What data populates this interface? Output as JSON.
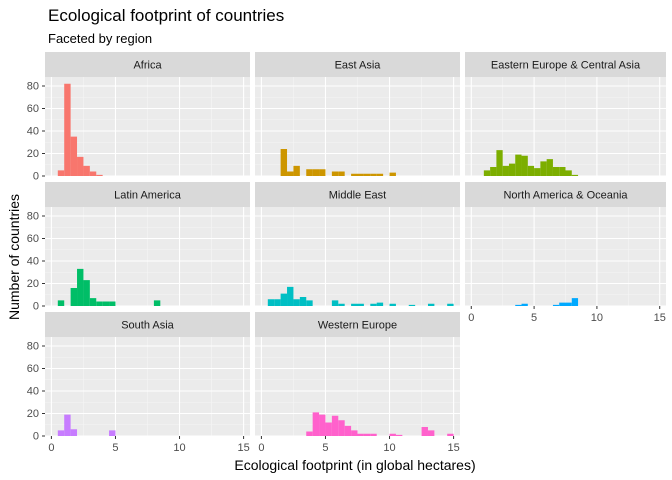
{
  "chart_data": {
    "type": "bar",
    "title": "Ecological footprint of countries",
    "subtitle": "Faceted by region",
    "xlabel": "Ecological footprint (in global hectares)",
    "ylabel": "Number of countries",
    "xlim": [
      -0.5,
      15.5
    ],
    "ylim": [
      0,
      88
    ],
    "x_ticks": [
      0,
      5,
      10,
      15
    ],
    "y_ticks": [
      0,
      20,
      40,
      60,
      80
    ],
    "bin_width": 0.5,
    "grid": true,
    "legend": "none",
    "facets": [
      {
        "name": "Africa",
        "color": "#F8766D",
        "bins": [
          [
            0.5,
            5
          ],
          [
            1.0,
            82
          ],
          [
            1.5,
            35
          ],
          [
            2.0,
            17
          ],
          [
            2.5,
            9
          ],
          [
            3.0,
            4
          ],
          [
            3.5,
            1
          ]
        ]
      },
      {
        "name": "East Asia",
        "color": "#CD9600",
        "bins": [
          [
            1.5,
            24
          ],
          [
            2.0,
            4
          ],
          [
            2.5,
            9
          ],
          [
            3.5,
            6
          ],
          [
            4.0,
            6
          ],
          [
            4.5,
            6
          ],
          [
            5.5,
            4
          ],
          [
            6.0,
            4
          ],
          [
            7.0,
            2
          ],
          [
            7.5,
            2
          ],
          [
            8.0,
            2
          ],
          [
            8.5,
            2
          ],
          [
            9.0,
            2
          ],
          [
            10.0,
            3
          ]
        ]
      },
      {
        "name": "Eastern Europe & Central Asia",
        "color": "#7CAE00",
        "bins": [
          [
            1.0,
            5
          ],
          [
            1.5,
            8
          ],
          [
            2.0,
            23
          ],
          [
            2.5,
            9
          ],
          [
            3.0,
            11
          ],
          [
            3.5,
            19
          ],
          [
            4.0,
            18
          ],
          [
            4.5,
            9
          ],
          [
            5.0,
            7
          ],
          [
            5.5,
            13
          ],
          [
            6.0,
            15
          ],
          [
            6.5,
            8
          ],
          [
            7.0,
            8
          ],
          [
            7.5,
            5
          ],
          [
            8.0,
            1
          ]
        ]
      },
      {
        "name": "Latin America",
        "color": "#00BE67",
        "bins": [
          [
            0.5,
            5
          ],
          [
            1.5,
            16
          ],
          [
            2.0,
            33
          ],
          [
            2.5,
            23
          ],
          [
            3.0,
            7
          ],
          [
            3.5,
            4
          ],
          [
            4.0,
            4
          ],
          [
            4.5,
            4
          ],
          [
            8.0,
            5
          ]
        ]
      },
      {
        "name": "Middle East",
        "color": "#00BFC4",
        "bins": [
          [
            0.5,
            6
          ],
          [
            1.0,
            6
          ],
          [
            1.5,
            11
          ],
          [
            2.0,
            17
          ],
          [
            2.5,
            6
          ],
          [
            3.0,
            8
          ],
          [
            3.5,
            5
          ],
          [
            5.5,
            5
          ],
          [
            6.0,
            2
          ],
          [
            7.0,
            2
          ],
          [
            7.5,
            2
          ],
          [
            8.5,
            2
          ],
          [
            9.0,
            3
          ],
          [
            10.0,
            2
          ],
          [
            11.5,
            1
          ],
          [
            13.0,
            2
          ],
          [
            14.5,
            2
          ]
        ]
      },
      {
        "name": "North America & Oceania",
        "color": "#00A9FF",
        "bins": [
          [
            3.5,
            1
          ],
          [
            4.0,
            2
          ],
          [
            6.5,
            1
          ],
          [
            7.0,
            3
          ],
          [
            7.5,
            3
          ],
          [
            8.0,
            7
          ]
        ]
      },
      {
        "name": "South Asia",
        "color": "#C77CFF",
        "bins": [
          [
            0.5,
            5
          ],
          [
            1.0,
            19
          ],
          [
            1.5,
            6
          ],
          [
            4.5,
            5
          ]
        ]
      },
      {
        "name": "Western Europe",
        "color": "#FF61CC",
        "bins": [
          [
            3.5,
            4
          ],
          [
            4.0,
            21
          ],
          [
            4.5,
            19
          ],
          [
            5.0,
            12
          ],
          [
            5.5,
            18
          ],
          [
            6.0,
            14
          ],
          [
            6.5,
            9
          ],
          [
            7.0,
            5
          ],
          [
            7.5,
            2
          ],
          [
            8.0,
            2
          ],
          [
            8.5,
            2
          ],
          [
            10.0,
            2
          ],
          [
            10.5,
            1
          ],
          [
            12.5,
            8
          ],
          [
            13.0,
            5
          ],
          [
            14.5,
            2
          ]
        ]
      }
    ]
  }
}
